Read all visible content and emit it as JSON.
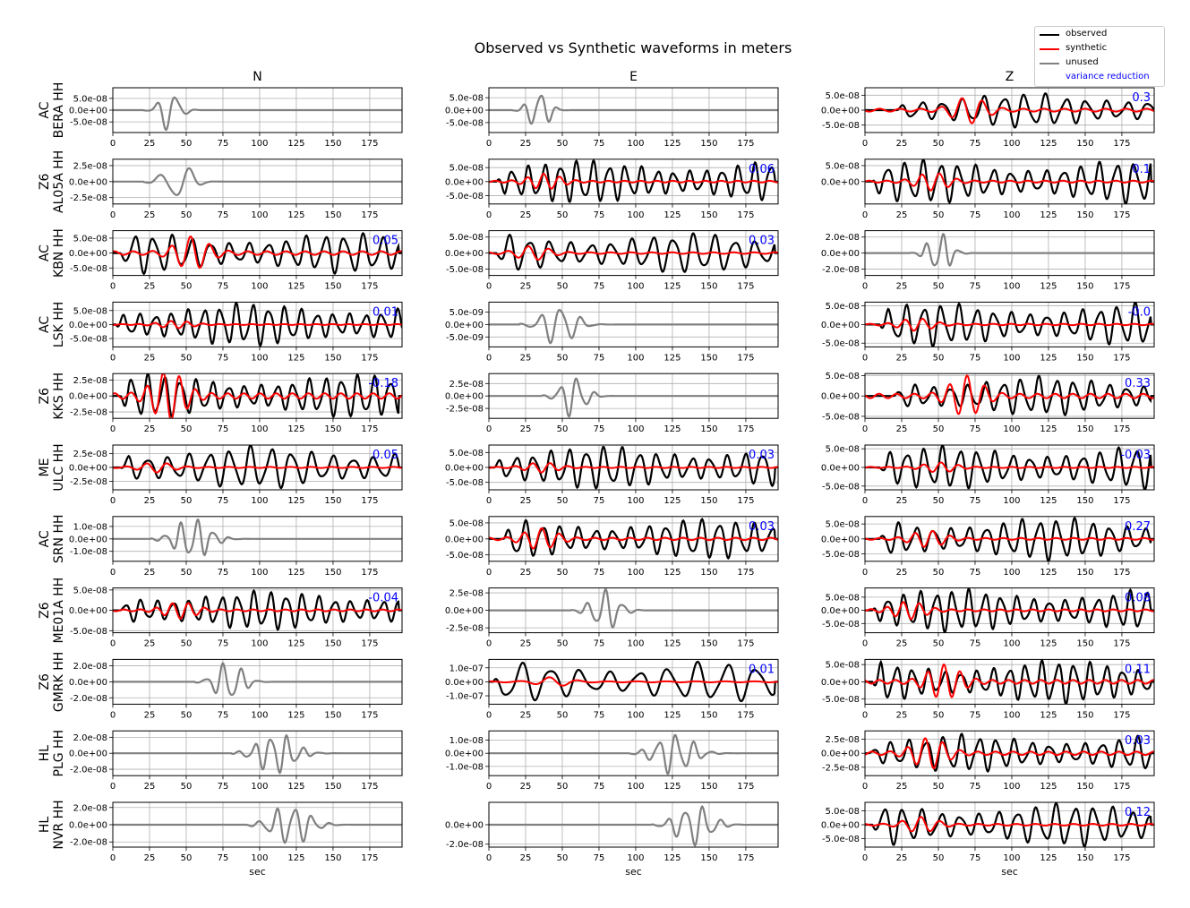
{
  "title": "Observed vs Synthetic waveforms in meters",
  "columns": [
    "N",
    "E",
    "Z"
  ],
  "xlabel": "sec",
  "xticks": [
    0,
    25,
    50,
    75,
    100,
    125,
    150,
    175
  ],
  "xlim": [
    0,
    197
  ],
  "legend": {
    "observed": "observed",
    "synthetic": "synthetic",
    "unused": "unused",
    "variance_reduction": "variance reduction"
  },
  "colors": {
    "observed": "#000000",
    "synthetic": "#ff0000",
    "unused": "#808080",
    "variance_reduction": "#0000ff",
    "grid": "#b0b0b0"
  },
  "chart_data": {
    "type": "line",
    "grid": true,
    "legend_position": "top-right",
    "stations": [
      {
        "network": "AC",
        "station": "BERA HH",
        "traces": [
          {
            "component": "N",
            "used": false,
            "vr": null,
            "yticks": [
              "5.0e-08",
              "0.0e+00",
              "-5.0e-08"
            ],
            "ylim": [
              -9.5e-08,
              9.5e-08
            ],
            "amp": 9.5e-08,
            "syn_amp": 0,
            "onset": 25,
            "period": 14,
            "duration": 40
          },
          {
            "component": "E",
            "used": false,
            "vr": null,
            "yticks": [
              "5.0e-08",
              "0.0e+00",
              "-5.0e-08"
            ],
            "ylim": [
              -9e-08,
              9e-08
            ],
            "amp": 9e-08,
            "syn_amp": 0,
            "onset": 20,
            "period": 12,
            "duration": 40
          },
          {
            "component": "Z",
            "used": true,
            "vr": "0.3",
            "yticks": [
              "5.0e-08",
              "0.0e+00",
              "-5.0e-08"
            ],
            "ylim": [
              -7.5e-08,
              7.5e-08
            ],
            "amp": 6e-08,
            "syn_amp": 4e-08,
            "onset": 22,
            "period": 14,
            "duration": 175
          }
        ]
      },
      {
        "network": "Z6",
        "station": "AL05A HH",
        "traces": [
          {
            "component": "N",
            "used": false,
            "vr": null,
            "yticks": [
              "2.5e-08",
              "0.0e+00",
              "-2.5e-08"
            ],
            "ylim": [
              -3.5e-08,
              3.5e-08
            ],
            "amp": 3.3e-08,
            "syn_amp": 0,
            "onset": 25,
            "period": 20,
            "duration": 55
          },
          {
            "component": "E",
            "used": true,
            "vr": "0.06",
            "yticks": [
              "5.0e-08",
              "0.0e+00",
              "-5.0e-08"
            ],
            "ylim": [
              -8e-08,
              8e-08
            ],
            "amp": 8e-08,
            "syn_amp": 2.5e-08,
            "onset": 5,
            "period": 11,
            "duration": 190
          },
          {
            "component": "Z",
            "used": true,
            "vr": "0.1",
            "yticks": [
              "5.0e-08",
              "0.0e+00"
            ],
            "ylim": [
              -7e-08,
              7e-08
            ],
            "amp": 7e-08,
            "syn_amp": 2.5e-08,
            "onset": 5,
            "period": 12,
            "duration": 190
          }
        ]
      },
      {
        "network": "AC",
        "station": "KBN HH",
        "traces": [
          {
            "component": "N",
            "used": true,
            "vr": "0.05",
            "yticks": [
              "5.0e-08",
              "0.0e+00",
              "-5.0e-08"
            ],
            "ylim": [
              -7.5e-08,
              7.5e-08
            ],
            "amp": 7e-08,
            "syn_amp": 5e-08,
            "onset": 5,
            "period": 13,
            "duration": 190
          },
          {
            "component": "E",
            "used": true,
            "vr": "0.03",
            "yticks": [
              "5.0e-08",
              "0.0e+00",
              "-5.0e-08"
            ],
            "ylim": [
              -7e-08,
              7e-08
            ],
            "amp": 6.5e-08,
            "syn_amp": 2e-08,
            "onset": 5,
            "period": 14,
            "duration": 190
          },
          {
            "component": "Z",
            "used": false,
            "vr": null,
            "yticks": [
              "2.0e-08",
              "0.0e+00",
              "-2.0e-08"
            ],
            "ylim": [
              -2.8e-08,
              2.8e-08
            ],
            "amp": 2.8e-08,
            "syn_amp": 0,
            "onset": 35,
            "period": 11,
            "duration": 45
          }
        ]
      },
      {
        "network": "AC",
        "station": "LSK HH",
        "traces": [
          {
            "component": "N",
            "used": true,
            "vr": "0.01",
            "yticks": [
              "5.0e-08",
              "0.0e+00",
              "-5.0e-08"
            ],
            "ylim": [
              -8e-08,
              8e-08
            ],
            "amp": 8e-08,
            "syn_amp": 1.2e-08,
            "onset": 2,
            "period": 11,
            "duration": 195
          },
          {
            "component": "E",
            "used": false,
            "vr": null,
            "yticks": [
              "5.0e-09",
              "0.0e+00",
              "-5.0e-09"
            ],
            "ylim": [
              -9e-09,
              9e-09
            ],
            "amp": 9e-09,
            "syn_amp": 0,
            "onset": 25,
            "period": 14,
            "duration": 65
          },
          {
            "component": "Z",
            "used": true,
            "vr": "-0.0",
            "yticks": [
              "5.0e-08",
              "0.0e+00",
              "-5.0e-08"
            ],
            "ylim": [
              -6e-08,
              6e-08
            ],
            "amp": 6e-08,
            "syn_amp": 1.5e-08,
            "onset": 10,
            "period": 12,
            "duration": 185
          }
        ]
      },
      {
        "network": "Z6",
        "station": "KKS HH",
        "traces": [
          {
            "component": "N",
            "used": true,
            "vr": "-0.18",
            "yticks": [
              "2.5e-08",
              "0.0e+00",
              "-2.5e-08"
            ],
            "ylim": [
              -3.5e-08,
              3.5e-08
            ],
            "amp": 3.5e-08,
            "syn_amp": 3.5e-08,
            "onset": 5,
            "period": 11,
            "duration": 190
          },
          {
            "component": "E",
            "used": false,
            "vr": null,
            "yticks": [
              "2.5e-08",
              "0.0e+00",
              "-2.5e-08"
            ],
            "ylim": [
              -4.5e-08,
              4.5e-08
            ],
            "amp": 4.5e-08,
            "syn_amp": 0,
            "onset": 40,
            "period": 12,
            "duration": 50
          },
          {
            "component": "Z",
            "used": true,
            "vr": "0.33",
            "yticks": [
              "5.0e-08",
              "0.0e+00",
              "-5.0e-08"
            ],
            "ylim": [
              -5.5e-08,
              5.5e-08
            ],
            "amp": 5e-08,
            "syn_amp": 4.5e-08,
            "onset": 20,
            "period": 12,
            "duration": 175
          }
        ]
      },
      {
        "network": "ME",
        "station": "ULC HH",
        "traces": [
          {
            "component": "N",
            "used": true,
            "vr": "0.05",
            "yticks": [
              "2.5e-08",
              "0.0e+00",
              "-2.5e-08"
            ],
            "ylim": [
              -4e-08,
              4e-08
            ],
            "amp": 4e-08,
            "syn_amp": 8e-09,
            "onset": 5,
            "period": 14,
            "duration": 190
          },
          {
            "component": "E",
            "used": true,
            "vr": "0.03",
            "yticks": [
              "5.0e-08",
              "0.0e+00",
              "-5.0e-08"
            ],
            "ylim": [
              -7.5e-08,
              7.5e-08
            ],
            "amp": 7.5e-08,
            "syn_amp": 1.5e-08,
            "onset": 3,
            "period": 12,
            "duration": 192
          },
          {
            "component": "Z",
            "used": true,
            "vr": "-0.03",
            "yticks": [
              "5.0e-08",
              "0.0e+00",
              "-5.0e-08"
            ],
            "ylim": [
              -6e-08,
              6e-08
            ],
            "amp": 6e-08,
            "syn_amp": 1.2e-08,
            "onset": 10,
            "period": 12,
            "duration": 185
          }
        ]
      },
      {
        "network": "AC",
        "station": "SRN HH",
        "traces": [
          {
            "component": "N",
            "used": false,
            "vr": null,
            "yticks": [
              "1.0e-08",
              "0.0e+00",
              "-1.0e-08"
            ],
            "ylim": [
              -1.8e-08,
              1.8e-08
            ],
            "amp": 1.8e-08,
            "syn_amp": 0,
            "onset": 30,
            "period": 11,
            "duration": 70
          },
          {
            "component": "E",
            "used": true,
            "vr": "0.03",
            "yticks": [
              "5.0e-08",
              "0.0e+00",
              "-5.0e-08"
            ],
            "ylim": [
              -7e-08,
              7e-08
            ],
            "amp": 6.5e-08,
            "syn_amp": 3e-08,
            "onset": 10,
            "period": 12,
            "duration": 185
          },
          {
            "component": "Z",
            "used": true,
            "vr": "0.27",
            "yticks": [
              "5.0e-08",
              "0.0e+00",
              "-5.0e-08"
            ],
            "ylim": [
              -7.5e-08,
              7.5e-08
            ],
            "amp": 7.5e-08,
            "syn_amp": 2.5e-08,
            "onset": 10,
            "period": 12,
            "duration": 185
          }
        ]
      },
      {
        "network": "Z6",
        "station": "ME01A HH",
        "traces": [
          {
            "component": "N",
            "used": true,
            "vr": "-0.04",
            "yticks": [
              "5.0e-08",
              "0.0e+00",
              "-5.0e-08"
            ],
            "ylim": [
              -5.5e-08,
              5.5e-08
            ],
            "amp": 5e-08,
            "syn_amp": 1.8e-08,
            "onset": 5,
            "period": 11,
            "duration": 190
          },
          {
            "component": "E",
            "used": false,
            "vr": null,
            "yticks": [
              "2.5e-08",
              "0.0e+00",
              "-2.5e-08"
            ],
            "ylim": [
              -3.2e-08,
              3.2e-08
            ],
            "amp": 3.2e-08,
            "syn_amp": 0,
            "onset": 60,
            "period": 12,
            "duration": 55
          },
          {
            "component": "Z",
            "used": true,
            "vr": "0.08",
            "yticks": [
              "5.0e-08",
              "0.0e+00",
              "-5.0e-08"
            ],
            "ylim": [
              -8.5e-08,
              8.5e-08
            ],
            "amp": 8.5e-08,
            "syn_amp": 3e-08,
            "onset": 5,
            "period": 11,
            "duration": 190
          }
        ]
      },
      {
        "network": "Z6",
        "station": "GMRK HH",
        "traces": [
          {
            "component": "N",
            "used": false,
            "vr": null,
            "yticks": [
              "2.0e-08",
              "0.0e+00",
              "-2.0e-08"
            ],
            "ylim": [
              -2.8e-08,
              2.8e-08
            ],
            "amp": 2.8e-08,
            "syn_amp": 0,
            "onset": 60,
            "period": 12,
            "duration": 55
          },
          {
            "component": "E",
            "used": true,
            "vr": "0.01",
            "yticks": [
              "1.0e-07",
              "0.0e+00",
              "-1.0e-07"
            ],
            "ylim": [
              -1.6e-07,
              1.6e-07
            ],
            "amp": 1.5e-07,
            "syn_amp": 3e-08,
            "onset": 3,
            "period": 20,
            "duration": 192
          },
          {
            "component": "Z",
            "used": true,
            "vr": "0.11",
            "yticks": [
              "5.0e-08",
              "0.0e+00",
              "-5.0e-08"
            ],
            "ylim": [
              -6.5e-08,
              6.5e-08
            ],
            "amp": 6.5e-08,
            "syn_amp": 4.5e-08,
            "onset": 5,
            "period": 11,
            "duration": 190
          }
        ]
      },
      {
        "network": "HL",
        "station": "PLG HH",
        "traces": [
          {
            "component": "N",
            "used": false,
            "vr": null,
            "yticks": [
              "2.0e-08",
              "0.0e+00",
              "-2.0e-08"
            ],
            "ylim": [
              -2.8e-08,
              2.8e-08
            ],
            "amp": 2.8e-08,
            "syn_amp": 0,
            "onset": 85,
            "period": 11,
            "duration": 75
          },
          {
            "component": "E",
            "used": false,
            "vr": null,
            "yticks": [
              "1.0e-08",
              "0.0e+00",
              "-1.0e-08"
            ],
            "ylim": [
              -1.7e-08,
              1.7e-08
            ],
            "amp": 1.7e-08,
            "syn_amp": 0,
            "onset": 100,
            "period": 12,
            "duration": 75
          },
          {
            "component": "Z",
            "used": true,
            "vr": "0.03",
            "yticks": [
              "2.5e-08",
              "0.0e+00",
              "-2.5e-08"
            ],
            "ylim": [
              -4e-08,
              4e-08
            ],
            "amp": 3.5e-08,
            "syn_amp": 2.5e-08,
            "onset": 3,
            "period": 12,
            "duration": 192
          }
        ]
      },
      {
        "network": "HL",
        "station": "NVR HH",
        "traces": [
          {
            "component": "N",
            "used": false,
            "vr": null,
            "yticks": [
              "2.0e-08",
              "0.0e+00",
              "-2.0e-08"
            ],
            "ylim": [
              -2.6e-08,
              2.6e-08
            ],
            "amp": 2.6e-08,
            "syn_amp": 0,
            "onset": 95,
            "period": 12,
            "duration": 75
          },
          {
            "component": "E",
            "used": false,
            "vr": null,
            "yticks": [
              "0.0e+00",
              "-2.0e-08"
            ],
            "ylim": [
              -2.3e-08,
              2.3e-08
            ],
            "amp": 2.3e-08,
            "syn_amp": 0,
            "onset": 115,
            "period": 12,
            "duration": 70
          },
          {
            "component": "Z",
            "used": true,
            "vr": "0.12",
            "yticks": [
              "5.0e-08",
              "0.0e+00",
              "-5.0e-08"
            ],
            "ylim": [
              -8e-08,
              8e-08
            ],
            "amp": 8e-08,
            "syn_amp": 2.5e-08,
            "onset": 5,
            "period": 13,
            "duration": 190
          }
        ]
      }
    ]
  }
}
